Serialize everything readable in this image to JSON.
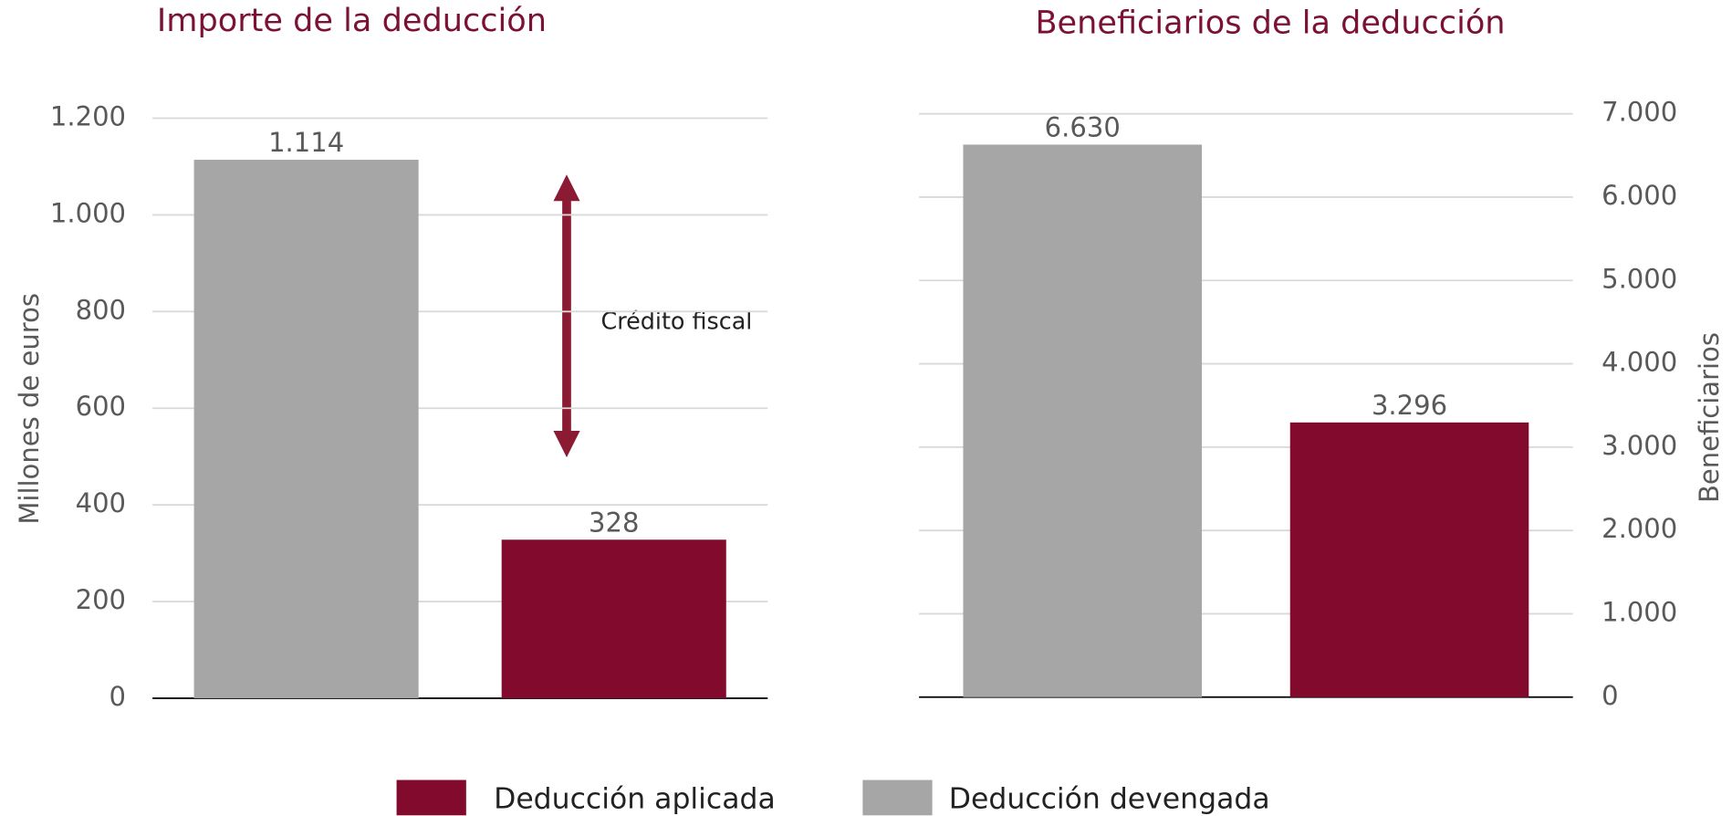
{
  "chart_data": [
    {
      "type": "bar",
      "title": "Importe de la deducción",
      "y_label": "Millones de euros",
      "categories": [
        null,
        null
      ],
      "series": [
        {
          "name": "Deducción devengada",
          "color": "#a6a6a6",
          "values": [
            1114,
            null
          ],
          "value_labels": [
            "1.114",
            null
          ]
        },
        {
          "name": "Deducción aplicada",
          "color": "#820a2c",
          "values": [
            null,
            328
          ],
          "value_labels": [
            null,
            "328"
          ]
        }
      ],
      "ylim": [
        0,
        1200
      ],
      "yticks": [
        0,
        200,
        400,
        600,
        800,
        {
          "value": 1000,
          "label": "1.000"
        },
        {
          "value": 1200,
          "label": "1.200"
        }
      ],
      "grid": true,
      "annotations": [
        "Crédito fiscal"
      ]
    },
    {
      "type": "bar",
      "title": "Beneficiarios de la deducción",
      "y2_label": "Beneficiarios",
      "categories": [
        null,
        null
      ],
      "series": [
        {
          "name": "Deducción devengada",
          "color": "#a6a6a6",
          "axis": "y2",
          "values": [
            6630,
            null
          ],
          "value_labels": [
            "6.630",
            null
          ]
        },
        {
          "name": "Deducción aplicada",
          "color": "#820a2c",
          "axis": "y2",
          "values": [
            null,
            3296
          ],
          "value_labels": [
            null,
            "3.296"
          ]
        }
      ],
      "y2lim": [
        0,
        7000
      ],
      "y2ticks": [
        0,
        {
          "value": 1000,
          "label": "1.000"
        },
        {
          "value": 2000,
          "label": "2.000"
        },
        {
          "value": 3000,
          "label": "3.000"
        },
        {
          "value": 4000,
          "label": "4.000"
        },
        {
          "value": 5000,
          "label": "5.000"
        },
        {
          "value": 6000,
          "label": "6.000"
        },
        {
          "value": 7000,
          "label": "7.000"
        }
      ],
      "grid": true
    }
  ]
}
